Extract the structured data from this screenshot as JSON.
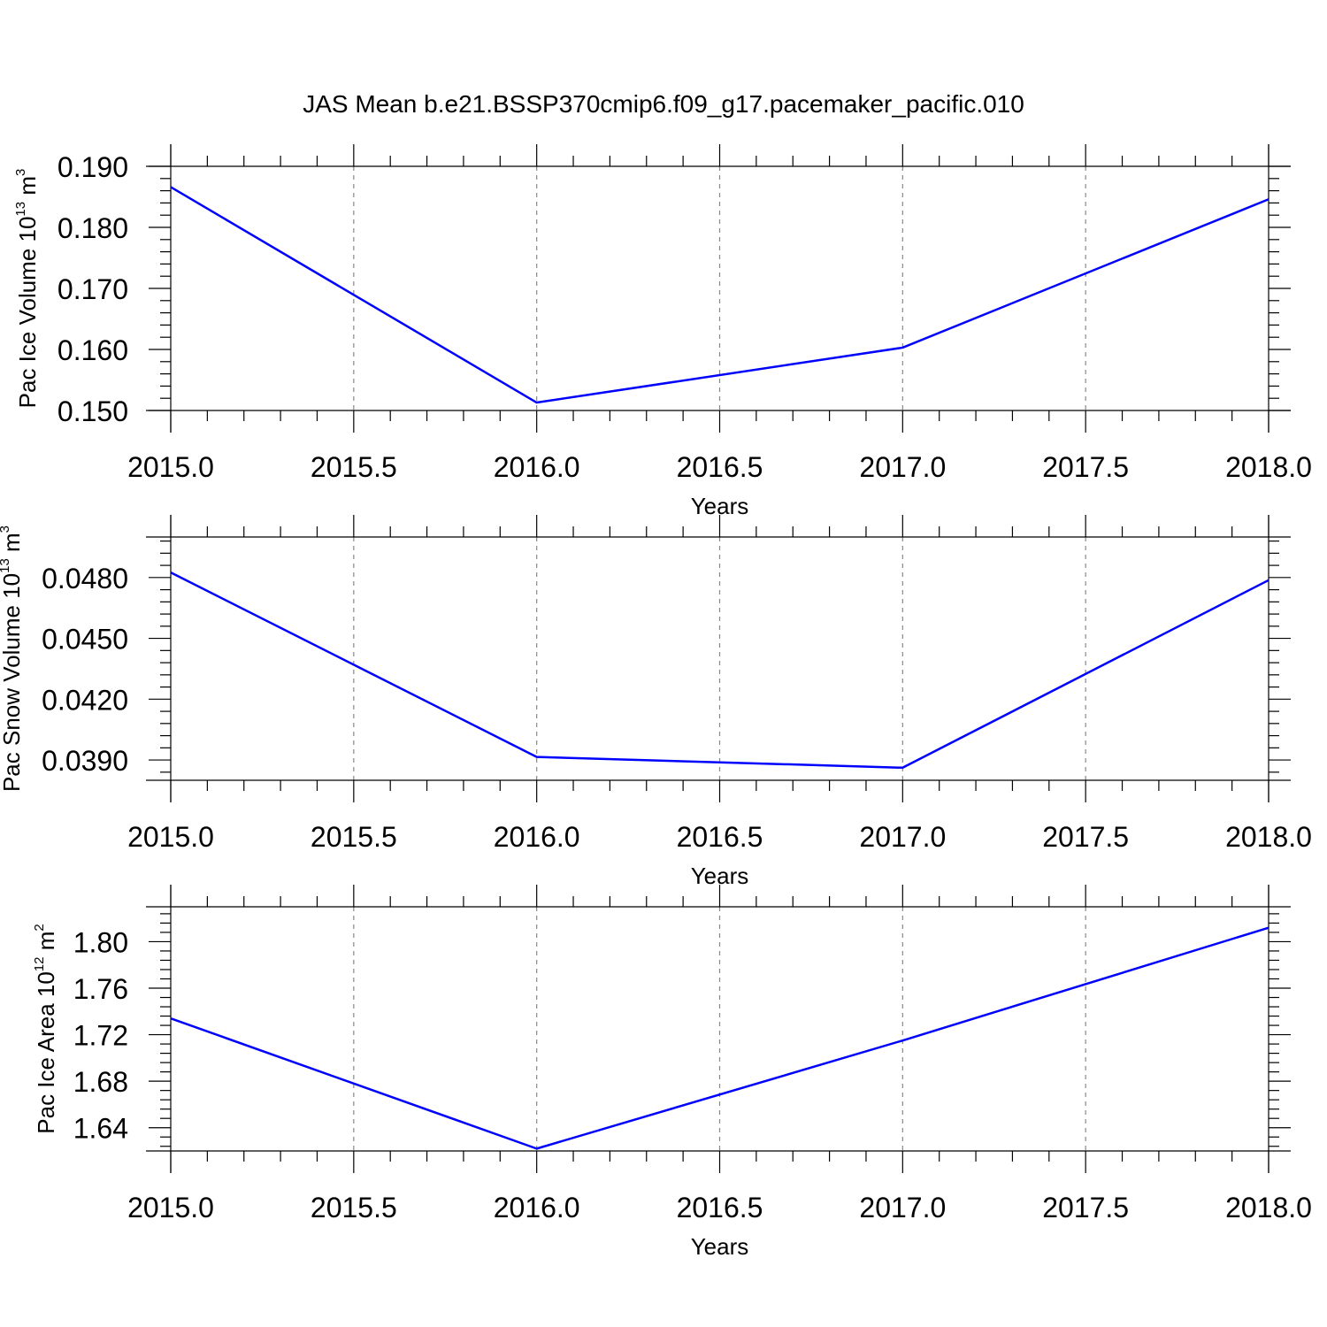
{
  "title": "JAS Mean b.e21.BSSP370cmip6.f09_g17.pacemaker_pacific.010",
  "colors": {
    "line": "#0000ff",
    "axis": "#000000",
    "grid": "#888888"
  },
  "chart_data": [
    {
      "type": "line",
      "xlabel": "Years",
      "ylabel": {
        "base": "Pac Ice Volume 10",
        "sup1": "13",
        "mid": " m",
        "sup2": "3"
      },
      "x": [
        2015,
        2016,
        2017,
        2018
      ],
      "values": [
        0.1866,
        0.1513,
        0.1603,
        0.1846
      ],
      "xlim": [
        2015,
        2018
      ],
      "ylim": [
        0.15,
        0.19
      ],
      "xticks": [
        "2015.0",
        "2015.5",
        "2016.0",
        "2016.5",
        "2017.0",
        "2017.5",
        "2018.0"
      ],
      "yticks": [
        "0.150",
        "0.160",
        "0.170",
        "0.180",
        "0.190"
      ],
      "grid": "vertical dashed"
    },
    {
      "type": "line",
      "xlabel": "Years",
      "ylabel": {
        "base": "Pac Snow Volume 10",
        "sup1": "13",
        "mid": " m",
        "sup2": "3"
      },
      "x": [
        2015,
        2016,
        2017,
        2018
      ],
      "values": [
        0.04825,
        0.03915,
        0.03862,
        0.04787
      ],
      "xlim": [
        2015,
        2018
      ],
      "ylim": [
        0.038,
        0.05
      ],
      "xticks": [
        "2015.0",
        "2015.5",
        "2016.0",
        "2016.5",
        "2017.0",
        "2017.5",
        "2018.0"
      ],
      "yticks": [
        "0.0390",
        "0.0420",
        "0.0450",
        "0.0480"
      ],
      "grid": "vertical dashed"
    },
    {
      "type": "line",
      "xlabel": "Years",
      "ylabel": {
        "base": "Pac Ice Area 10",
        "sup1": "12",
        "mid": " m",
        "sup2": "2"
      },
      "x": [
        2015,
        2016,
        2017,
        2018
      ],
      "values": [
        1.734,
        1.622,
        1.715,
        1.812
      ],
      "xlim": [
        2015,
        2018
      ],
      "ylim": [
        1.62,
        1.83
      ],
      "xticks": [
        "2015.0",
        "2015.5",
        "2016.0",
        "2016.5",
        "2017.0",
        "2017.5",
        "2018.0"
      ],
      "yticks": [
        "1.64",
        "1.68",
        "1.72",
        "1.76",
        "1.80"
      ],
      "grid": "vertical dashed"
    }
  ]
}
